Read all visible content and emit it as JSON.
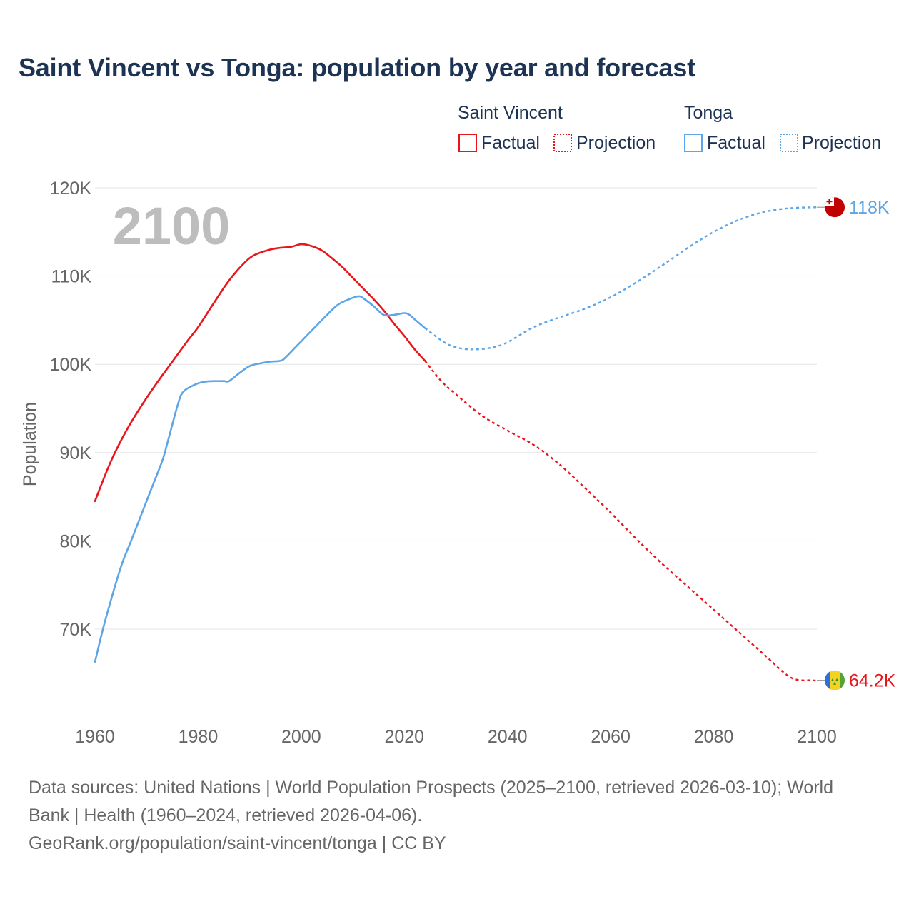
{
  "title": "Saint Vincent vs Tonga: population by year and forecast",
  "year_watermark": "2100",
  "legend": {
    "groups": [
      {
        "name": "Saint Vincent",
        "factual": "Factual",
        "projection": "Projection",
        "color": "#e8151b"
      },
      {
        "name": "Tonga",
        "factual": "Factual",
        "projection": "Projection",
        "color": "#5ca5e6"
      }
    ]
  },
  "footer": {
    "line1": "Data sources: United Nations | World Population Prospects (2025–2100, retrieved 2026-03-10); World",
    "line2": "Bank | Health (1960–2024, retrieved 2026-04-06).",
    "line3": "GeoRank.org/population/saint-vincent/tonga | CC BY"
  },
  "chart_data": {
    "type": "line",
    "title": "Saint Vincent vs Tonga: population by year and forecast",
    "xlabel": "",
    "ylabel": "Population",
    "xlim": [
      1960,
      2100
    ],
    "ylim": [
      62000,
      120000
    ],
    "x_ticks": [
      1960,
      1980,
      2000,
      2020,
      2040,
      2060,
      2080,
      2100
    ],
    "x_tick_labels": [
      "1960",
      "1980",
      "2000",
      "2020",
      "2040",
      "2060",
      "2080",
      "2100"
    ],
    "y_ticks": [
      70000,
      80000,
      90000,
      100000,
      110000,
      120000
    ],
    "y_tick_labels": [
      "70K",
      "80K",
      "90K",
      "100K",
      "110K",
      "120K"
    ],
    "grid": true,
    "series": [
      {
        "name": "Saint Vincent",
        "color": "#e8151b",
        "end_label": "64.2K",
        "factual": {
          "x": [
            1960,
            1963,
            1966,
            1969,
            1972,
            1975,
            1978,
            1980,
            1983,
            1986,
            1989,
            1991,
            1994,
            1996,
            1998,
            2000,
            2002,
            2004,
            2006,
            2008,
            2010,
            2012,
            2014,
            2016,
            2018,
            2020,
            2022,
            2024
          ],
          "y": [
            84500,
            88900,
            92400,
            95300,
            97900,
            100300,
            102700,
            104200,
            106900,
            109500,
            111500,
            112400,
            113000,
            113200,
            113300,
            113600,
            113400,
            112900,
            112000,
            111000,
            109800,
            108600,
            107400,
            106100,
            104600,
            103200,
            101700,
            100400
          ]
        },
        "projection": {
          "x": [
            2024,
            2027,
            2030,
            2035,
            2040,
            2045,
            2050,
            2055,
            2060,
            2065,
            2070,
            2075,
            2080,
            2085,
            2090,
            2095,
            2099,
            2100
          ],
          "y": [
            100400,
            98200,
            96600,
            94200,
            92500,
            90900,
            88700,
            86000,
            83200,
            80200,
            77400,
            74800,
            72200,
            69600,
            67000,
            64500,
            64200,
            64200
          ]
        }
      },
      {
        "name": "Tonga",
        "color": "#5ca5e6",
        "end_label": "118K",
        "factual": {
          "x": [
            1960,
            1962,
            1965,
            1967,
            1970,
            1973,
            1974,
            1976,
            1977,
            1979,
            1981,
            1983,
            1985,
            1986,
            1988,
            1990,
            1992,
            1994,
            1996,
            1997,
            1999,
            2001,
            2003,
            2005,
            2007,
            2009,
            2011,
            2012,
            2014,
            2016,
            2018,
            2020,
            2021,
            2022,
            2024
          ],
          "y": [
            66300,
            71000,
            77000,
            80000,
            84500,
            89000,
            91000,
            95300,
            96800,
            97600,
            98000,
            98100,
            98100,
            98100,
            99000,
            99800,
            100100,
            100300,
            100400,
            100800,
            102000,
            103200,
            104400,
            105600,
            106700,
            107300,
            107700,
            107500,
            106600,
            105600,
            105600,
            105800,
            105600,
            105100,
            104100
          ]
        },
        "projection": {
          "x": [
            2024,
            2028,
            2031,
            2034,
            2037,
            2040,
            2045,
            2050,
            2055,
            2060,
            2065,
            2070,
            2075,
            2080,
            2085,
            2090,
            2095,
            2100
          ],
          "y": [
            104100,
            102400,
            101800,
            101700,
            101900,
            102500,
            104200,
            105300,
            106300,
            107600,
            109300,
            111200,
            113200,
            115000,
            116400,
            117300,
            117700,
            117800
          ]
        }
      }
    ]
  }
}
